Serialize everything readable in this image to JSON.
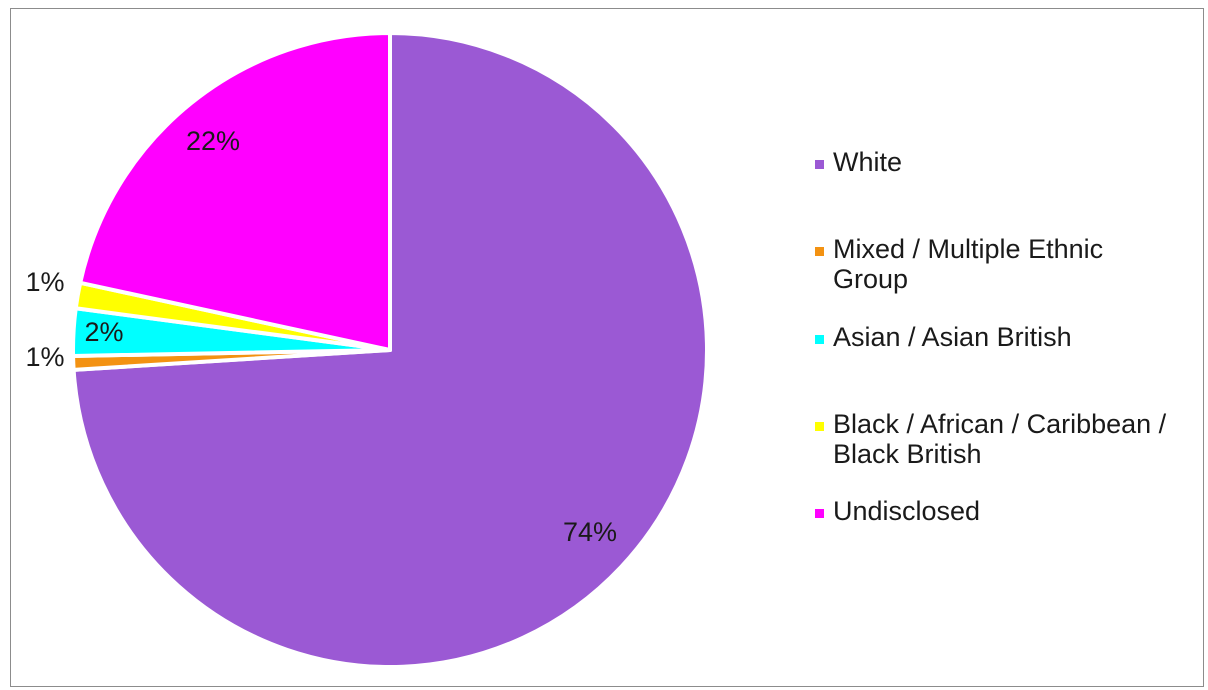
{
  "chart_data": {
    "type": "pie",
    "title": "",
    "slices": [
      {
        "label": "White",
        "value": 74,
        "display": "74%",
        "color": "#9b59d4"
      },
      {
        "label": "Mixed / Multiple Ethnic Group",
        "value": 0.7,
        "display": "1%",
        "color": "#f39212"
      },
      {
        "label": "Asian / Asian British",
        "value": 2.4,
        "display": "2%",
        "color": "#00ffff"
      },
      {
        "label": "Black / African / Caribbean / Black British",
        "value": 1.3,
        "display": "1%",
        "color": "#ffff00"
      },
      {
        "label": "Undisclosed",
        "value": 21.6,
        "display": "22%",
        "color": "#ff00ff"
      }
    ],
    "legend_position": "right"
  },
  "legend": [
    {
      "label": "White"
    },
    {
      "label": "Mixed / Multiple Ethnic Group"
    },
    {
      "label": "Asian / Asian British"
    },
    {
      "label": "Black / African / Caribbean / Black British"
    },
    {
      "label": "Undisclosed"
    }
  ]
}
